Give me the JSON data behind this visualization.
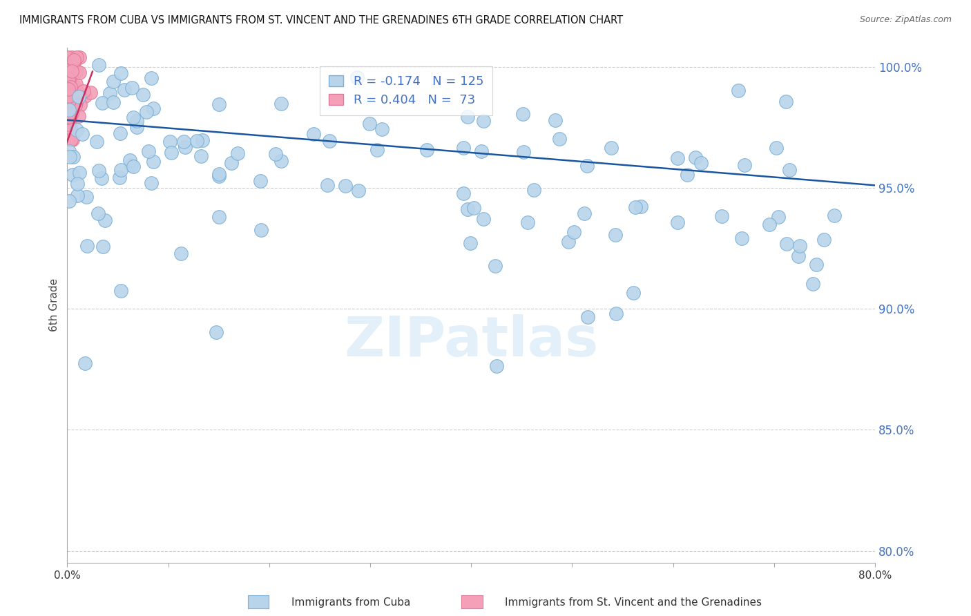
{
  "title": "IMMIGRANTS FROM CUBA VS IMMIGRANTS FROM ST. VINCENT AND THE GRENADINES 6TH GRADE CORRELATION CHART",
  "source": "Source: ZipAtlas.com",
  "ylabel": "6th Grade",
  "yticks": [
    0.8,
    0.85,
    0.9,
    0.95,
    1.0
  ],
  "ytick_labels": [
    "80.0%",
    "85.0%",
    "90.0%",
    "95.0%",
    "100.0%"
  ],
  "blue_R": -0.174,
  "blue_N": 125,
  "pink_R": 0.404,
  "pink_N": 73,
  "blue_color": "#b8d4ea",
  "pink_color": "#f4a0b8",
  "blue_edge": "#7ab0d8",
  "pink_edge": "#e07898",
  "trendline_blue": "#1a56a0",
  "trendline_pink": "#c83060",
  "watermark": "ZIPatlas",
  "xlim": [
    0.0,
    0.8
  ],
  "ylim": [
    0.795,
    1.008
  ]
}
